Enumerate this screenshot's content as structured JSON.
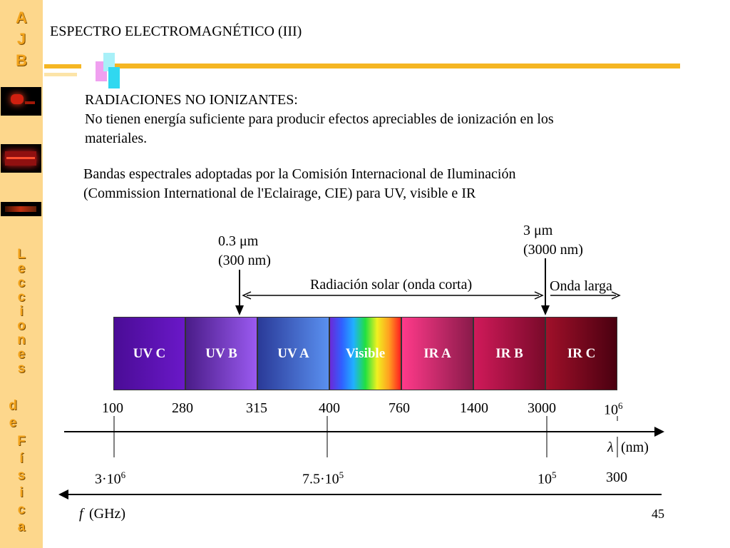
{
  "sidebar": {
    "letters_top": [
      "A",
      "J",
      "B"
    ],
    "letters_side": [
      "L",
      "e",
      "c",
      "c",
      "i",
      "o",
      "n",
      "e",
      "s",
      "d",
      "e",
      "F",
      "í",
      "s",
      "i",
      "c",
      "a"
    ],
    "thumbnails": [
      "image",
      "image",
      "image"
    ]
  },
  "title": "ESPECTRO ELECTROMAGNÉTICO (III)",
  "intro": {
    "heading": "RADIACIONES NO IONIZANTES:",
    "line1": "No tienen energía suficiente para producir efectos apreciables de ionización en los",
    "line2": "materiales."
  },
  "cie": {
    "line1": "Bandas espectrales adoptadas por la Comisión Internacional de Iluminación",
    "line2": "(Commission International de l'Eclairage, CIE) para UV, visible e IR"
  },
  "markers": {
    "m03": "0.3 μm",
    "m03_nm": "(300 nm)",
    "m3": "3 μm",
    "m3_nm": "(3000 nm)",
    "solar": "Radiación solar (onda corta)",
    "long": "Onda larga"
  },
  "bands": [
    {
      "label": "UV C",
      "color": "#5a0fb0"
    },
    {
      "label": "UV B",
      "color": "#7a38d8"
    },
    {
      "label": "UV A",
      "color": "#3a5fd0"
    },
    {
      "label": "Visible",
      "color": "#spectrum"
    },
    {
      "label": "IR A",
      "color": "#e03a7a"
    },
    {
      "label": "IR B",
      "color": "#c01a50"
    },
    {
      "label": "IR C",
      "color": "#8a0a22"
    }
  ],
  "wavelength_ticks": [
    "100",
    "280",
    "315",
    "400",
    "760",
    "1400",
    "3000",
    "10"
  ],
  "wavelength_last_exp": "6",
  "wavelength_axis_label": "(nm)",
  "frequency_ticks": [
    {
      "base": "3·10",
      "exp": "6"
    },
    {
      "base": "7.5·10",
      "exp": "5"
    },
    {
      "base": "10",
      "exp": "5"
    },
    {
      "base": "300",
      "exp": ""
    }
  ],
  "frequency_axis_label": "(GHz)",
  "page_number": "45"
}
